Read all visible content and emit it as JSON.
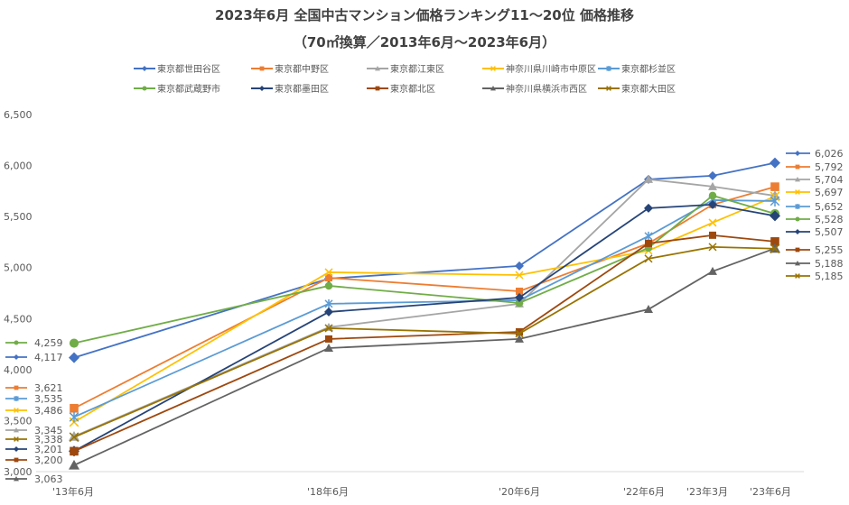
{
  "chart_data": {
    "type": "line",
    "title": "2023年6月 全国中古マンション価格ランキング11～20位 価格推移",
    "subtitle": "（70㎡換算／2013年6月～2023年6月）",
    "categories": [
      "'13年6月",
      "'18年6月",
      "'20年6月",
      "'22年6月",
      "'23年3月",
      "'23年6月"
    ],
    "ylim": [
      3000,
      6500
    ],
    "yticks": [
      "3,000",
      "3,500",
      "4,000",
      "4,500",
      "5,000",
      "5,500",
      "6,000",
      "6,500"
    ],
    "legend_position": "top",
    "series": [
      {
        "name": "東京都世田谷区",
        "color": "#4472C4",
        "marker": "diamond",
        "values": [
          4117,
          4892,
          5016,
          5865,
          5900,
          6026
        ],
        "start_label": "4,117",
        "end_label": "6,026"
      },
      {
        "name": "東京都中野区",
        "color": "#ED7D31",
        "marker": "square",
        "values": [
          3621,
          4900,
          4768,
          5237,
          5617,
          5792
        ],
        "start_label": "3,621",
        "end_label": "5,792"
      },
      {
        "name": "東京都江東区",
        "color": "#A5A5A5",
        "marker": "triangle",
        "values": [
          3345,
          4415,
          4645,
          5865,
          5794,
          5704
        ],
        "start_label": "3,345",
        "end_label": "5,704"
      },
      {
        "name": "神奈川県川崎市中原区",
        "color": "#FFC000",
        "marker": "x",
        "values": [
          3486,
          4954,
          4927,
          5166,
          5440,
          5697
        ],
        "start_label": "3,486",
        "end_label": "5,697"
      },
      {
        "name": "東京都杉並区",
        "color": "#5B9BD5",
        "marker": "star",
        "values": [
          3535,
          4645,
          4680,
          5308,
          5661,
          5652
        ],
        "start_label": "3,535",
        "end_label": "5,652"
      },
      {
        "name": "東京都武蔵野市",
        "color": "#70AD47",
        "marker": "circle",
        "values": [
          4259,
          4821,
          4653,
          5193,
          5706,
          5528
        ],
        "start_label": "4,259",
        "end_label": "5,528"
      },
      {
        "name": "東京都墨田区",
        "color": "#264478",
        "marker": "diamond",
        "values": [
          3201,
          4565,
          4706,
          5582,
          5617,
          5507
        ],
        "start_label": "3,201",
        "end_label": "5,507"
      },
      {
        "name": "東京都北区",
        "color": "#9E480E",
        "marker": "square",
        "values": [
          3200,
          4300,
          4370,
          5237,
          5317,
          5255
        ],
        "start_label": "3,200",
        "end_label": "5,255"
      },
      {
        "name": "神奈川県横浜市西区",
        "color": "#636363",
        "marker": "triangle",
        "values": [
          3063,
          4211,
          4300,
          4591,
          4963,
          5188
        ],
        "start_label": "3,063",
        "end_label": "5,188"
      },
      {
        "name": "東京都大田区",
        "color": "#997300",
        "marker": "x",
        "values": [
          3338,
          4406,
          4353,
          5087,
          5202,
          5185
        ],
        "start_label": "3,338",
        "end_label": "5,185"
      }
    ]
  }
}
